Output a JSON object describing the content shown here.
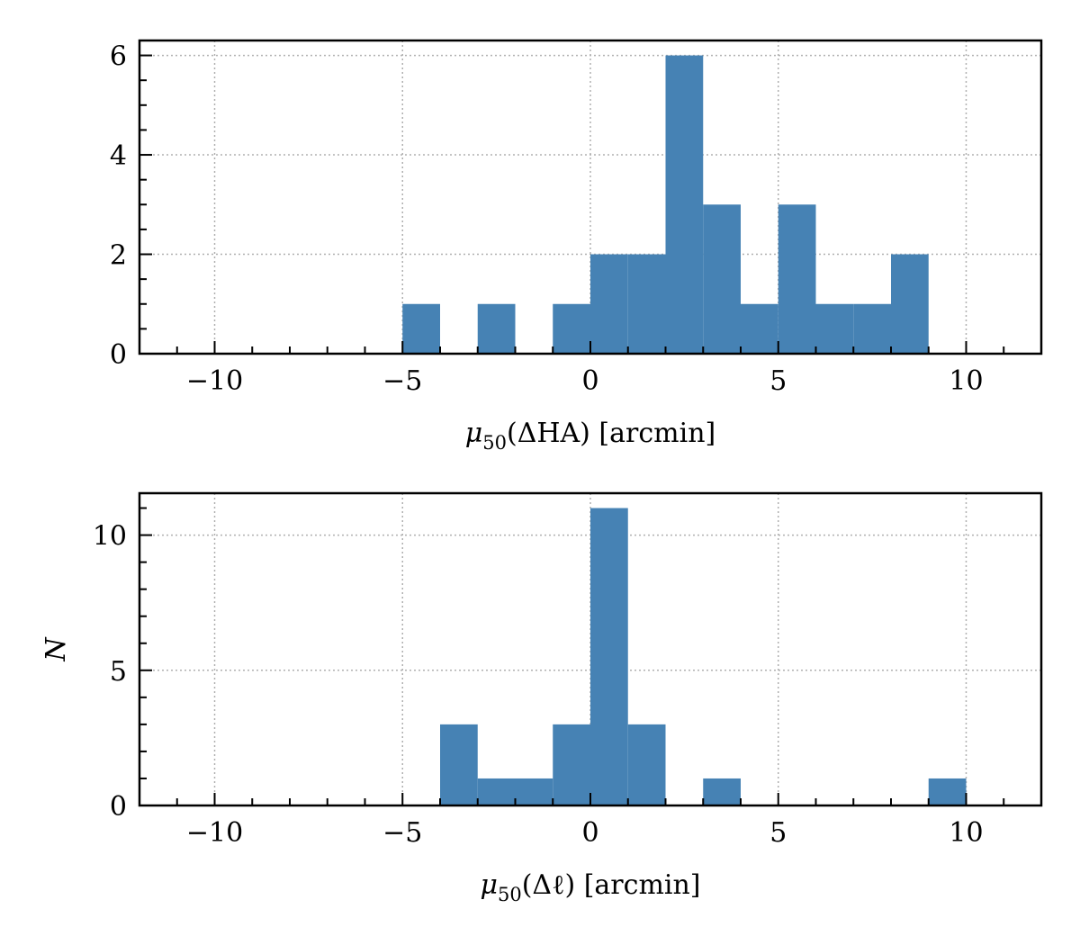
{
  "chart_data": [
    {
      "type": "bar",
      "xlabel": "μ50(ΔHA) [arcmin]",
      "xlabel_parts": {
        "symbol": "μ",
        "subscript": "50",
        "argument": "(ΔHA)",
        "unit": "[arcmin]"
      },
      "ylabel": "",
      "xlim": [
        -12,
        12
      ],
      "ylim": [
        0,
        6.3
      ],
      "xticks": [
        -10,
        -5,
        0,
        5,
        10
      ],
      "xtick_labels": [
        "−10",
        "−5",
        "0",
        "5",
        "10"
      ],
      "yticks": [
        0,
        2,
        4,
        6
      ],
      "ytick_labels": [
        "0",
        "2",
        "4",
        "6"
      ],
      "grid": true,
      "bar_color": "#4682b4",
      "bins": [
        {
          "x0": -5,
          "x1": -4,
          "count": 1
        },
        {
          "x0": -3,
          "x1": -2,
          "count": 1
        },
        {
          "x0": -1,
          "x1": 0,
          "count": 1
        },
        {
          "x0": 0,
          "x1": 1,
          "count": 2
        },
        {
          "x0": 1,
          "x1": 2,
          "count": 2
        },
        {
          "x0": 2,
          "x1": 3,
          "count": 6
        },
        {
          "x0": 3,
          "x1": 4,
          "count": 3
        },
        {
          "x0": 4,
          "x1": 5,
          "count": 1
        },
        {
          "x0": 5,
          "x1": 6,
          "count": 3
        },
        {
          "x0": 6,
          "x1": 7,
          "count": 1
        },
        {
          "x0": 7,
          "x1": 8,
          "count": 1
        },
        {
          "x0": 8,
          "x1": 9,
          "count": 2
        }
      ]
    },
    {
      "type": "bar",
      "xlabel": "μ50(Δℓ) [arcmin]",
      "xlabel_parts": {
        "symbol": "μ",
        "subscript": "50",
        "argument": "(Δℓ)",
        "unit": "[arcmin]"
      },
      "ylabel": "N",
      "xlim": [
        -12,
        12
      ],
      "ylim": [
        0,
        11.55
      ],
      "xticks": [
        -10,
        -5,
        0,
        5,
        10
      ],
      "xtick_labels": [
        "−10",
        "−5",
        "0",
        "5",
        "10"
      ],
      "yticks": [
        0,
        5,
        10
      ],
      "ytick_labels": [
        "0",
        "5",
        "10"
      ],
      "grid": true,
      "bar_color": "#4682b4",
      "bins": [
        {
          "x0": -4,
          "x1": -3,
          "count": 3
        },
        {
          "x0": -3,
          "x1": -2,
          "count": 1
        },
        {
          "x0": -2,
          "x1": -1,
          "count": 1
        },
        {
          "x0": -1,
          "x1": 0,
          "count": 3
        },
        {
          "x0": 0,
          "x1": 1,
          "count": 11
        },
        {
          "x0": 1,
          "x1": 2,
          "count": 3
        },
        {
          "x0": 3,
          "x1": 4,
          "count": 1
        },
        {
          "x0": 9,
          "x1": 10,
          "count": 1
        }
      ]
    }
  ]
}
